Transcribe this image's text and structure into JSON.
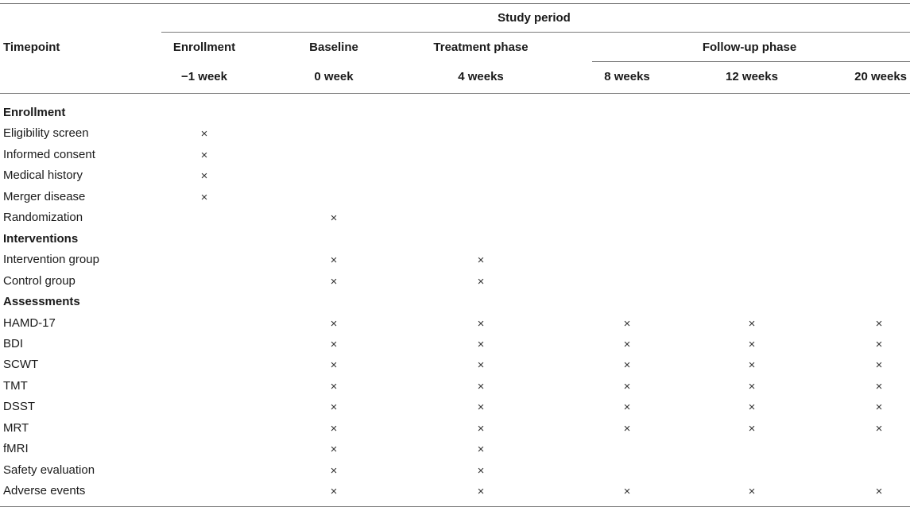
{
  "header": {
    "study_period": "Study period",
    "timepoint": "Timepoint",
    "followup_phase": "Follow-up phase",
    "phases": [
      "Enrollment",
      "Baseline",
      "Treatment phase"
    ],
    "times": [
      "−1 week",
      "0 week",
      "4 weeks",
      "8 weeks",
      "12 weeks",
      "20 weeks"
    ]
  },
  "rows": [
    {
      "label": "Enrollment",
      "section": true,
      "marks": [
        false,
        false,
        false,
        false,
        false,
        false
      ]
    },
    {
      "label": "Eligibility screen",
      "section": false,
      "marks": [
        true,
        false,
        false,
        false,
        false,
        false
      ]
    },
    {
      "label": "Informed consent",
      "section": false,
      "marks": [
        true,
        false,
        false,
        false,
        false,
        false
      ]
    },
    {
      "label": "Medical history",
      "section": false,
      "marks": [
        true,
        false,
        false,
        false,
        false,
        false
      ]
    },
    {
      "label": "Merger disease",
      "section": false,
      "marks": [
        true,
        false,
        false,
        false,
        false,
        false
      ]
    },
    {
      "label": "Randomization",
      "section": false,
      "marks": [
        false,
        true,
        false,
        false,
        false,
        false
      ]
    },
    {
      "label": "Interventions",
      "section": true,
      "marks": [
        false,
        false,
        false,
        false,
        false,
        false
      ]
    },
    {
      "label": "Intervention group",
      "section": false,
      "marks": [
        false,
        true,
        true,
        false,
        false,
        false
      ]
    },
    {
      "label": "Control group",
      "section": false,
      "marks": [
        false,
        true,
        true,
        false,
        false,
        false
      ]
    },
    {
      "label": "Assessments",
      "section": true,
      "marks": [
        false,
        false,
        false,
        false,
        false,
        false
      ]
    },
    {
      "label": "HAMD-17",
      "section": false,
      "marks": [
        false,
        true,
        true,
        true,
        true,
        true
      ]
    },
    {
      "label": "BDI",
      "section": false,
      "marks": [
        false,
        true,
        true,
        true,
        true,
        true
      ]
    },
    {
      "label": "SCWT",
      "section": false,
      "marks": [
        false,
        true,
        true,
        true,
        true,
        true
      ]
    },
    {
      "label": "TMT",
      "section": false,
      "marks": [
        false,
        true,
        true,
        true,
        true,
        true
      ]
    },
    {
      "label": "DSST",
      "section": false,
      "marks": [
        false,
        true,
        true,
        true,
        true,
        true
      ]
    },
    {
      "label": "MRT",
      "section": false,
      "marks": [
        false,
        true,
        true,
        true,
        true,
        true
      ]
    },
    {
      "label": "fMRI",
      "section": false,
      "marks": [
        false,
        true,
        true,
        false,
        false,
        false
      ]
    },
    {
      "label": "Safety evaluation",
      "section": false,
      "marks": [
        false,
        true,
        true,
        false,
        false,
        false
      ]
    },
    {
      "label": "Adverse events",
      "section": false,
      "marks": [
        false,
        true,
        true,
        true,
        true,
        true
      ]
    }
  ],
  "mark_symbol": "×"
}
